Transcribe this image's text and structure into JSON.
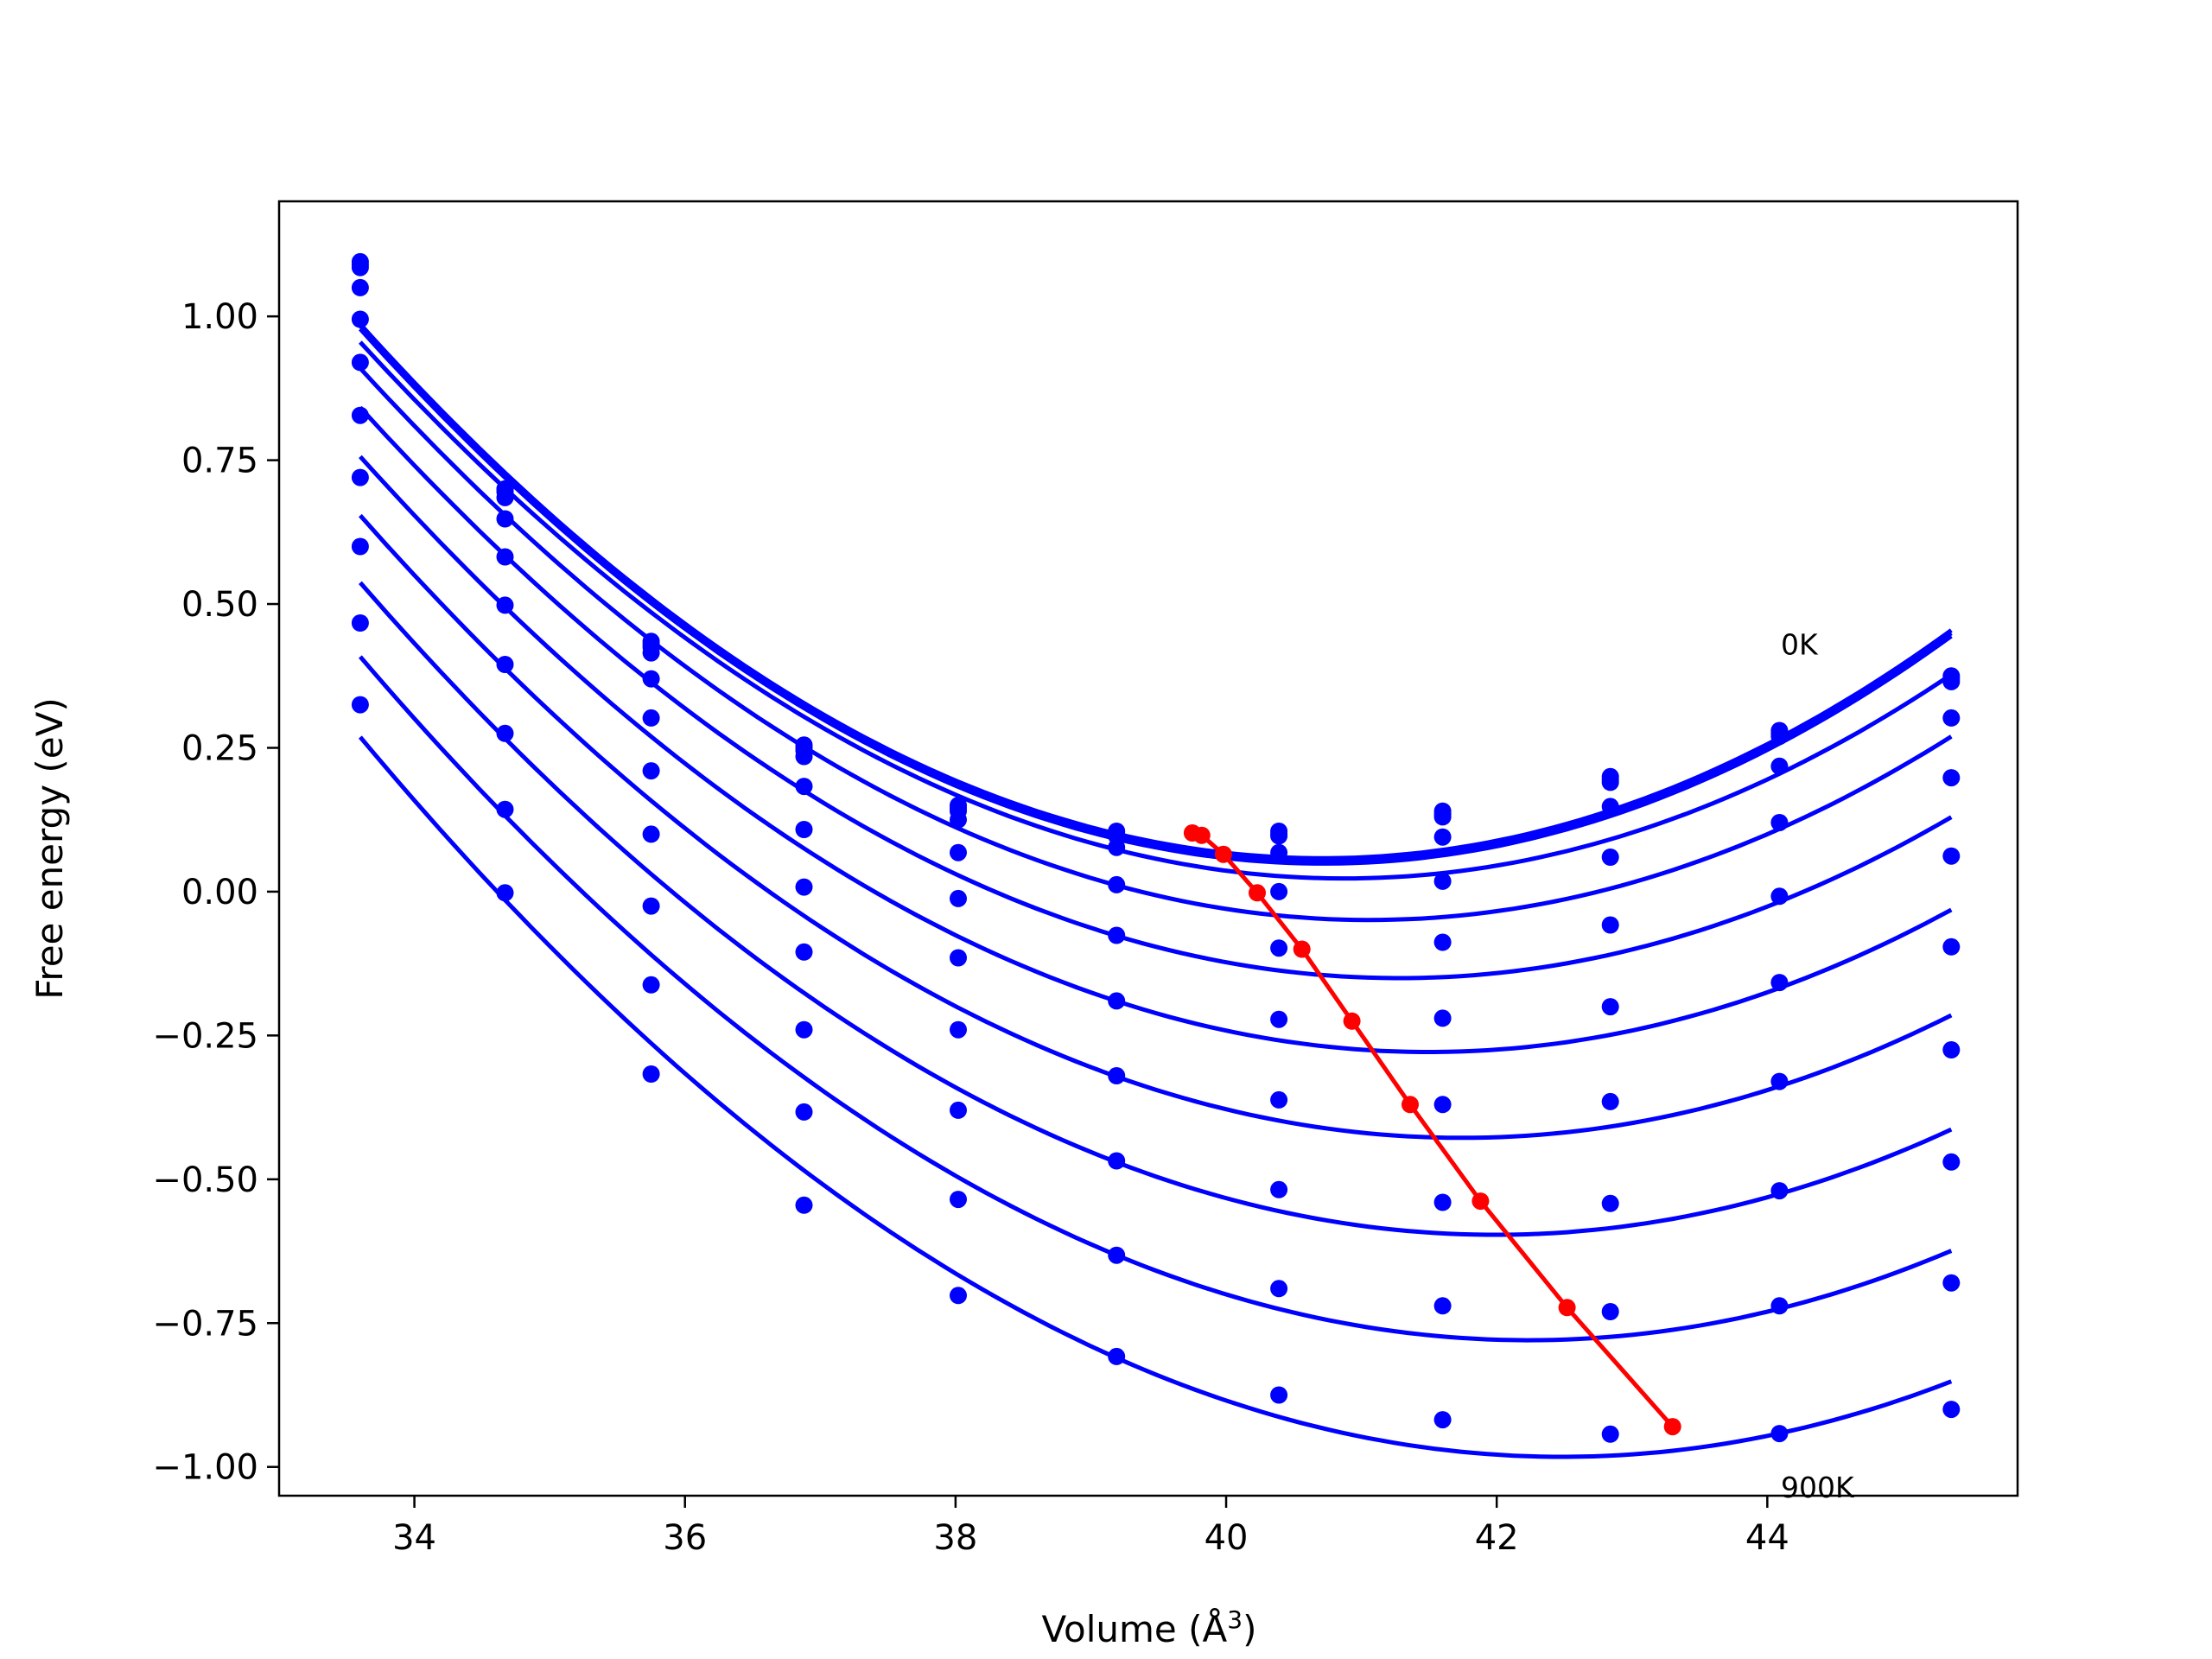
{
  "chart_data": {
    "type": "line",
    "title": "",
    "xlabel": "Volume (Å",
    "xlabel_sup": "3",
    "xlabel_end": ")",
    "ylabel": "Free energy (eV)",
    "xlim": [
      33.0,
      45.85
    ],
    "ylim": [
      -1.05,
      1.2
    ],
    "xticks": [
      34,
      36,
      38,
      40,
      42,
      44
    ],
    "xtick_labels": [
      "34",
      "36",
      "38",
      "40",
      "42",
      "44"
    ],
    "yticks": [
      1.0,
      0.75,
      0.5,
      0.25,
      0.0,
      -0.25,
      -0.5,
      -0.75,
      -1.0
    ],
    "ytick_labels": [
      "1.00",
      "0.75",
      "0.50",
      "0.25",
      "0.00",
      "−0.25",
      "−0.50",
      "−0.75",
      "−1.00"
    ],
    "grid": false,
    "colors": {
      "curves": "#0000ff",
      "minimum_line": "#ff0000"
    },
    "x": [
      33.6,
      34.67,
      35.75,
      36.88,
      38.02,
      39.19,
      40.39,
      41.6,
      42.84,
      44.09,
      45.36
    ],
    "series": [
      {
        "values": [
          1.095,
          0.7,
          0.435,
          0.255,
          0.15,
          0.105,
          0.105,
          0.14,
          0.2,
          0.28,
          0.375
        ]
      },
      {
        "values": [
          1.09,
          0.7,
          0.43,
          0.25,
          0.145,
          0.1,
          0.1,
          0.135,
          0.195,
          0.275,
          0.37
        ]
      },
      {
        "values": [
          1.085,
          0.695,
          0.425,
          0.245,
          0.14,
          0.097,
          0.097,
          0.13,
          0.19,
          0.27,
          0.365
        ]
      },
      {
        "values": [
          1.05,
          0.685,
          0.415,
          0.235,
          0.125,
          0.077,
          0.068,
          0.095,
          0.148,
          0.218,
          0.302
        ]
      },
      {
        "values": [
          0.995,
          0.648,
          0.37,
          0.183,
          0.068,
          0.012,
          0.0,
          0.018,
          0.06,
          0.12,
          0.198
        ]
      },
      {
        "values": [
          0.92,
          0.582,
          0.302,
          0.108,
          -0.012,
          -0.076,
          -0.098,
          -0.088,
          -0.058,
          -0.008,
          0.062
        ]
      },
      {
        "values": [
          0.828,
          0.498,
          0.21,
          0.008,
          -0.115,
          -0.19,
          -0.222,
          -0.22,
          -0.2,
          -0.158,
          -0.096
        ]
      },
      {
        "values": [
          0.72,
          0.395,
          0.1,
          -0.105,
          -0.24,
          -0.32,
          -0.362,
          -0.37,
          -0.365,
          -0.33,
          -0.275
        ]
      },
      {
        "values": [
          0.6,
          0.275,
          -0.025,
          -0.24,
          -0.38,
          -0.468,
          -0.518,
          -0.54,
          -0.542,
          -0.52,
          -0.47
        ]
      },
      {
        "values": [
          0.467,
          0.143,
          -0.162,
          -0.383,
          -0.535,
          -0.632,
          -0.69,
          -0.72,
          -0.73,
          -0.72,
          -0.68
        ]
      },
      {
        "values": [
          0.325,
          -0.002,
          -0.317,
          -0.545,
          -0.702,
          -0.808,
          -0.875,
          -0.918,
          -0.943,
          -0.942,
          -0.9
        ]
      }
    ],
    "minimum_line": {
      "x": [
        39.75,
        39.82,
        39.98,
        40.23,
        40.56,
        40.93,
        41.36,
        41.88,
        42.52,
        43.3
      ],
      "y": [
        0.102,
        0.098,
        0.065,
        -0.002,
        -0.1,
        -0.225,
        -0.37,
        -0.538,
        -0.723,
        -0.93
      ]
    },
    "annotations": [
      {
        "text": "0K",
        "x": 44.1,
        "y": 0.43
      },
      {
        "text": "900K",
        "x": 44.1,
        "y": -1.035
      }
    ]
  }
}
